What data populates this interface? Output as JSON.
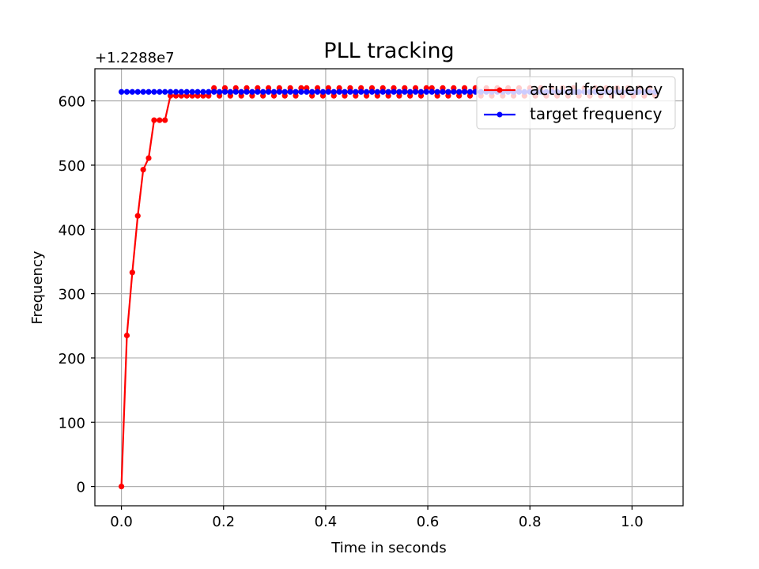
{
  "chart_data": {
    "type": "line",
    "title": "PLL tracking",
    "xlabel": "Time in seconds",
    "ylabel": "Frequency",
    "offset_text": "+1.2288e7",
    "xlim": [
      -0.052,
      1.1
    ],
    "ylim": [
      -30,
      650
    ],
    "xticks": [
      0.0,
      0.2,
      0.4,
      0.6,
      0.8,
      1.0
    ],
    "xtick_labels": [
      "0.0",
      "0.2",
      "0.4",
      "0.6",
      "0.8",
      "1.0"
    ],
    "yticks": [
      0,
      100,
      200,
      300,
      400,
      500,
      600
    ],
    "ytick_labels": [
      "0",
      "100",
      "200",
      "300",
      "400",
      "500",
      "600"
    ],
    "grid": true,
    "legend": {
      "location": "top-right",
      "entries": [
        "actual frequency",
        "target frequency"
      ]
    },
    "series": [
      {
        "name": "actual frequency",
        "color": "#ff0000",
        "x": [
          0.0,
          0.0107,
          0.0213,
          0.032,
          0.0427,
          0.0533,
          0.064,
          0.0747,
          0.0853,
          0.096,
          0.1067,
          0.1173,
          0.128,
          0.1387,
          0.1493,
          0.16,
          0.1707,
          0.1813,
          0.192,
          0.2027,
          0.2133,
          0.224,
          0.2347,
          0.2453,
          0.256,
          0.2667,
          0.2773,
          0.288,
          0.2987,
          0.3093,
          0.32,
          0.3307,
          0.3413,
          0.352,
          0.3627,
          0.3733,
          0.384,
          0.3947,
          0.4053,
          0.416,
          0.4267,
          0.4373,
          0.448,
          0.4587,
          0.4693,
          0.48,
          0.4907,
          0.5013,
          0.512,
          0.5227,
          0.5333,
          0.544,
          0.5547,
          0.5653,
          0.576,
          0.5867,
          0.5973,
          0.608,
          0.6187,
          0.6293,
          0.64,
          0.6507,
          0.6613,
          0.672,
          0.6827,
          0.6933,
          0.704,
          0.7147,
          0.7253,
          0.736,
          0.7467,
          0.7573,
          0.768,
          0.7787,
          0.7893,
          0.8,
          0.8107,
          0.8213,
          0.832,
          0.8427,
          0.8533,
          0.864,
          0.8747,
          0.8853,
          0.896,
          0.9067,
          0.9173,
          0.928,
          0.9387,
          0.9493,
          0.96,
          0.9707,
          0.9813,
          0.992,
          1.0027,
          1.0133,
          1.024,
          1.0347,
          1.0453
        ],
        "y": [
          0,
          235,
          333,
          421,
          493,
          511,
          570,
          570,
          570,
          608,
          608,
          608,
          608,
          608,
          608,
          608,
          608,
          620,
          608,
          620,
          608,
          620,
          608,
          620,
          608,
          620,
          608,
          620,
          608,
          620,
          608,
          620,
          608,
          620,
          620,
          608,
          620,
          608,
          620,
          608,
          620,
          608,
          620,
          608,
          620,
          608,
          620,
          608,
          620,
          608,
          620,
          608,
          620,
          608,
          620,
          608,
          620,
          620,
          608,
          620,
          608,
          620,
          608,
          620,
          608,
          620,
          608,
          620,
          608,
          620,
          608,
          620,
          608,
          620,
          608,
          620,
          608,
          620,
          608,
          620,
          608,
          620,
          608,
          620,
          608,
          620,
          608,
          620,
          608,
          620,
          608,
          620,
          608,
          620,
          608,
          620,
          608,
          620,
          608
        ]
      },
      {
        "name": "target frequency",
        "color": "#0000ff",
        "x": [
          0.0,
          0.0107,
          0.0213,
          0.032,
          0.0427,
          0.0533,
          0.064,
          0.0747,
          0.0853,
          0.096,
          0.1067,
          0.1173,
          0.128,
          0.1387,
          0.1493,
          0.16,
          0.1707,
          0.1813,
          0.192,
          0.2027,
          0.2133,
          0.224,
          0.2347,
          0.2453,
          0.256,
          0.2667,
          0.2773,
          0.288,
          0.2987,
          0.3093,
          0.32,
          0.3307,
          0.3413,
          0.352,
          0.3627,
          0.3733,
          0.384,
          0.3947,
          0.4053,
          0.416,
          0.4267,
          0.4373,
          0.448,
          0.4587,
          0.4693,
          0.48,
          0.4907,
          0.5013,
          0.512,
          0.5227,
          0.5333,
          0.544,
          0.5547,
          0.5653,
          0.576,
          0.5867,
          0.5973,
          0.608,
          0.6187,
          0.6293,
          0.64,
          0.6507,
          0.6613,
          0.672,
          0.6827,
          0.6933,
          0.704,
          0.7147,
          0.7253,
          0.736,
          0.7467,
          0.7573,
          0.768,
          0.7787,
          0.7893,
          0.8,
          0.8107,
          0.8213,
          0.832,
          0.8427,
          0.8533,
          0.864,
          0.8747,
          0.8853,
          0.896,
          0.9067,
          0.9173,
          0.928,
          0.9387,
          0.9493,
          0.96,
          0.9707,
          0.9813,
          0.992,
          1.0027,
          1.0133,
          1.024,
          1.0347,
          1.0453
        ],
        "y": [
          614,
          614,
          614,
          614,
          614,
          614,
          614,
          614,
          614,
          614,
          614,
          614,
          614,
          614,
          614,
          614,
          614,
          614,
          614,
          614,
          614,
          614,
          614,
          614,
          614,
          614,
          614,
          614,
          614,
          614,
          614,
          614,
          614,
          614,
          614,
          614,
          614,
          614,
          614,
          614,
          614,
          614,
          614,
          614,
          614,
          614,
          614,
          614,
          614,
          614,
          614,
          614,
          614,
          614,
          614,
          614,
          614,
          614,
          614,
          614,
          614,
          614,
          614,
          614,
          614,
          614,
          614,
          614,
          614,
          614,
          614,
          614,
          614,
          614,
          614,
          614,
          614,
          614,
          614,
          614,
          614,
          614,
          614,
          614,
          614,
          614,
          614,
          614,
          614,
          614,
          614,
          614,
          614,
          614,
          614,
          614,
          614,
          614,
          614
        ]
      }
    ]
  }
}
